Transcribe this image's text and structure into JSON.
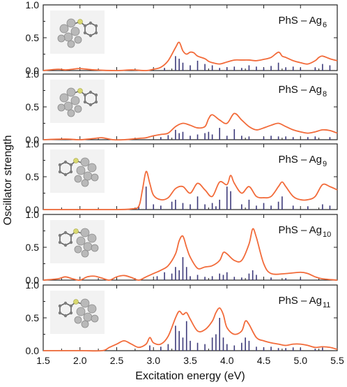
{
  "figure": {
    "ylabel": "Oscillator strength",
    "xlabel": "Excitation energy (eV)",
    "x_ticks": [
      "1.5",
      "2.0",
      "2.5",
      "3.0",
      "3.5",
      "4.0",
      "4.5",
      "5.0",
      "5.5"
    ],
    "y_ticks": [
      "0.0",
      "0.5",
      "1.0"
    ],
    "colors": {
      "spectrum": "#f26b3a",
      "sticks": "#3d3a7a",
      "frame": "#222222"
    }
  },
  "panels": [
    {
      "label_main": "PhS – Ag",
      "label_sub": "6"
    },
    {
      "label_main": "PhS – Ag",
      "label_sub": "8"
    },
    {
      "label_main": "PhS – Ag",
      "label_sub": "9"
    },
    {
      "label_main": "PhS – Ag",
      "label_sub": "10"
    },
    {
      "label_main": "PhS – Ag",
      "label_sub": "11"
    }
  ],
  "chart_data": [
    {
      "type": "line",
      "title": "PhS – Ag6",
      "xlabel": "Excitation energy (eV)",
      "ylabel": "Oscillator strength",
      "xlim": [
        1.5,
        5.5
      ],
      "ylim": [
        0,
        1.0
      ],
      "series": [
        {
          "x": [
            1.5,
            1.7,
            1.8,
            1.9,
            2.0,
            2.2,
            2.5,
            2.7,
            2.9,
            3.0,
            3.1,
            3.2,
            3.3,
            3.35,
            3.4,
            3.45,
            3.5,
            3.55,
            3.6,
            3.7,
            3.75,
            3.8,
            3.9,
            4.0,
            4.1,
            4.2,
            4.3,
            4.4,
            4.5,
            4.6,
            4.7,
            4.75,
            4.8,
            4.9,
            5.0,
            5.1,
            5.2,
            5.25,
            5.3,
            5.4,
            5.5
          ],
          "y": [
            0.0,
            0.02,
            0.01,
            0.02,
            0.03,
            0.01,
            0.0,
            0.01,
            0.0,
            0.02,
            0.05,
            0.15,
            0.35,
            0.43,
            0.3,
            0.25,
            0.28,
            0.27,
            0.22,
            0.18,
            0.14,
            0.12,
            0.1,
            0.13,
            0.16,
            0.16,
            0.16,
            0.15,
            0.17,
            0.2,
            0.28,
            0.22,
            0.2,
            0.15,
            0.12,
            0.1,
            0.15,
            0.2,
            0.22,
            0.18,
            0.15
          ]
        }
      ],
      "sticks": [
        [
          3.15,
          0.04
        ],
        [
          3.3,
          0.22
        ],
        [
          3.35,
          0.18
        ],
        [
          3.4,
          0.12
        ],
        [
          3.5,
          0.08
        ],
        [
          3.6,
          0.15
        ],
        [
          3.7,
          0.1
        ],
        [
          3.8,
          0.08
        ],
        [
          3.9,
          0.04
        ],
        [
          4.0,
          0.05
        ],
        [
          4.1,
          0.06
        ],
        [
          4.2,
          0.04
        ],
        [
          4.3,
          0.08
        ],
        [
          4.4,
          0.06
        ],
        [
          4.5,
          0.04
        ],
        [
          4.6,
          0.07
        ],
        [
          4.7,
          0.12
        ],
        [
          4.8,
          0.05
        ],
        [
          4.9,
          0.06
        ],
        [
          5.0,
          0.04
        ],
        [
          5.2,
          0.05
        ],
        [
          5.3,
          0.1
        ],
        [
          5.4,
          0.08
        ]
      ]
    },
    {
      "type": "line",
      "title": "PhS – Ag8",
      "xlabel": "Excitation energy (eV)",
      "ylabel": "Oscillator strength",
      "xlim": [
        1.5,
        5.5
      ],
      "ylim": [
        0,
        1.0
      ],
      "series": [
        {
          "x": [
            1.5,
            1.8,
            2.0,
            2.2,
            2.3,
            2.45,
            2.6,
            2.8,
            2.9,
            3.0,
            3.1,
            3.2,
            3.3,
            3.4,
            3.5,
            3.6,
            3.7,
            3.75,
            3.8,
            3.9,
            4.0,
            4.1,
            4.2,
            4.3,
            4.4,
            4.5,
            4.6,
            4.7,
            4.8,
            4.9,
            5.0,
            5.1,
            5.2,
            5.3,
            5.4,
            5.5
          ],
          "y": [
            0.0,
            0.01,
            0.0,
            0.02,
            0.03,
            0.0,
            0.0,
            0.02,
            0.03,
            0.06,
            0.08,
            0.1,
            0.2,
            0.25,
            0.22,
            0.18,
            0.2,
            0.32,
            0.38,
            0.3,
            0.25,
            0.4,
            0.3,
            0.2,
            0.15,
            0.18,
            0.22,
            0.25,
            0.2,
            0.15,
            0.12,
            0.1,
            0.12,
            0.15,
            0.14,
            0.1
          ]
        }
      ],
      "sticks": [
        [
          3.1,
          0.04
        ],
        [
          3.2,
          0.07
        ],
        [
          3.3,
          0.15
        ],
        [
          3.35,
          0.1
        ],
        [
          3.4,
          0.12
        ],
        [
          3.5,
          0.06
        ],
        [
          3.6,
          0.08
        ],
        [
          3.7,
          0.1
        ],
        [
          3.75,
          0.12
        ],
        [
          3.8,
          0.08
        ],
        [
          3.9,
          0.18
        ],
        [
          4.0,
          0.06
        ],
        [
          4.1,
          0.16
        ],
        [
          4.2,
          0.06
        ],
        [
          4.3,
          0.05
        ],
        [
          4.5,
          0.04
        ],
        [
          4.6,
          0.06
        ],
        [
          4.7,
          0.05
        ],
        [
          4.8,
          0.05
        ],
        [
          4.9,
          0.04
        ],
        [
          5.1,
          0.04
        ],
        [
          5.2,
          0.05
        ],
        [
          5.4,
          0.04
        ]
      ]
    },
    {
      "type": "line",
      "title": "PhS – Ag9",
      "xlabel": "Excitation energy (eV)",
      "ylabel": "Oscillator strength",
      "xlim": [
        1.5,
        5.5
      ],
      "ylim": [
        0,
        1.0
      ],
      "series": [
        {
          "x": [
            1.5,
            2.0,
            2.5,
            2.7,
            2.8,
            2.85,
            2.9,
            2.95,
            3.0,
            3.1,
            3.2,
            3.3,
            3.4,
            3.5,
            3.6,
            3.7,
            3.8,
            3.9,
            4.0,
            4.05,
            4.1,
            4.2,
            4.3,
            4.4,
            4.5,
            4.6,
            4.7,
            4.75,
            4.8,
            4.9,
            5.0,
            5.1,
            5.2,
            5.3,
            5.4,
            5.5
          ],
          "y": [
            0.0,
            0.0,
            0.0,
            0.01,
            0.05,
            0.3,
            0.58,
            0.4,
            0.22,
            0.15,
            0.18,
            0.32,
            0.35,
            0.25,
            0.4,
            0.3,
            0.2,
            0.42,
            0.38,
            0.52,
            0.4,
            0.25,
            0.35,
            0.2,
            0.18,
            0.2,
            0.35,
            0.42,
            0.35,
            0.2,
            0.15,
            0.15,
            0.2,
            0.38,
            0.35,
            0.3
          ]
        }
      ],
      "sticks": [
        [
          2.8,
          0.05
        ],
        [
          2.9,
          0.35
        ],
        [
          3.0,
          0.08
        ],
        [
          3.1,
          0.06
        ],
        [
          3.25,
          0.12
        ],
        [
          3.3,
          0.15
        ],
        [
          3.4,
          0.1
        ],
        [
          3.5,
          0.08
        ],
        [
          3.6,
          0.2
        ],
        [
          3.7,
          0.08
        ],
        [
          3.8,
          0.1
        ],
        [
          3.85,
          0.05
        ],
        [
          3.9,
          0.15
        ],
        [
          4.0,
          0.35
        ],
        [
          4.05,
          0.28
        ],
        [
          4.2,
          0.08
        ],
        [
          4.3,
          0.15
        ],
        [
          4.4,
          0.06
        ],
        [
          4.5,
          0.1
        ],
        [
          4.6,
          0.06
        ],
        [
          4.7,
          0.12
        ],
        [
          4.75,
          0.2
        ],
        [
          4.9,
          0.06
        ],
        [
          5.1,
          0.05
        ],
        [
          5.3,
          0.08
        ],
        [
          5.4,
          0.06
        ]
      ]
    },
    {
      "type": "line",
      "title": "PhS – Ag10",
      "xlabel": "Excitation energy (eV)",
      "ylabel": "Oscillator strength",
      "xlim": [
        1.5,
        5.5
      ],
      "ylim": [
        0,
        1.0
      ],
      "series": [
        {
          "x": [
            1.5,
            1.7,
            1.8,
            1.9,
            2.0,
            2.1,
            2.2,
            2.3,
            2.4,
            2.5,
            2.6,
            2.7,
            2.8,
            2.9,
            3.0,
            3.1,
            3.2,
            3.3,
            3.35,
            3.4,
            3.45,
            3.5,
            3.6,
            3.7,
            3.8,
            3.9,
            3.95,
            4.0,
            4.1,
            4.2,
            4.3,
            4.35,
            4.4,
            4.5,
            4.6,
            4.8,
            5.0,
            5.1,
            5.2,
            5.3,
            5.5
          ],
          "y": [
            0.0,
            0.02,
            0.05,
            0.02,
            0.0,
            0.05,
            0.06,
            0.03,
            0.0,
            0.05,
            0.07,
            0.04,
            0.0,
            0.05,
            0.1,
            0.15,
            0.22,
            0.4,
            0.6,
            0.67,
            0.5,
            0.35,
            0.18,
            0.2,
            0.22,
            0.3,
            0.42,
            0.4,
            0.3,
            0.3,
            0.55,
            0.78,
            0.65,
            0.25,
            0.1,
            0.1,
            0.12,
            0.1,
            0.05,
            0.02,
            0.0
          ]
        }
      ],
      "sticks": [
        [
          3.05,
          0.06
        ],
        [
          3.15,
          0.12
        ],
        [
          3.25,
          0.1
        ],
        [
          3.3,
          0.2
        ],
        [
          3.35,
          0.15
        ],
        [
          3.4,
          0.35
        ],
        [
          3.45,
          0.2
        ],
        [
          3.5,
          0.06
        ],
        [
          3.6,
          0.08
        ],
        [
          3.7,
          0.05
        ],
        [
          3.8,
          0.06
        ],
        [
          3.9,
          0.1
        ],
        [
          3.95,
          0.08
        ],
        [
          4.0,
          0.12
        ],
        [
          4.1,
          0.05
        ],
        [
          4.2,
          0.04
        ],
        [
          4.3,
          0.1
        ],
        [
          4.35,
          0.15
        ],
        [
          4.4,
          0.08
        ],
        [
          4.6,
          0.04
        ],
        [
          4.8,
          0.03
        ],
        [
          5.0,
          0.03
        ]
      ]
    },
    {
      "type": "line",
      "title": "PhS – Ag11",
      "xlabel": "Excitation energy (eV)",
      "ylabel": "Oscillator strength",
      "xlim": [
        1.5,
        5.5
      ],
      "ylim": [
        0,
        1.0
      ],
      "series": [
        {
          "x": [
            1.5,
            2.0,
            2.3,
            2.4,
            2.5,
            2.6,
            2.7,
            2.8,
            2.9,
            2.95,
            3.0,
            3.1,
            3.2,
            3.3,
            3.35,
            3.4,
            3.45,
            3.5,
            3.6,
            3.7,
            3.8,
            3.85,
            3.9,
            3.95,
            4.0,
            4.1,
            4.2,
            4.25,
            4.3,
            4.4,
            4.5,
            4.6,
            4.7,
            4.8,
            4.9,
            5.0,
            5.1,
            5.2,
            5.3,
            5.4,
            5.5
          ],
          "y": [
            0.0,
            0.0,
            0.0,
            0.05,
            0.1,
            0.15,
            0.1,
            0.05,
            0.1,
            0.2,
            0.12,
            0.1,
            0.22,
            0.5,
            0.6,
            0.55,
            0.58,
            0.48,
            0.3,
            0.32,
            0.45,
            0.58,
            0.65,
            0.55,
            0.35,
            0.25,
            0.3,
            0.45,
            0.4,
            0.2,
            0.15,
            0.12,
            0.1,
            0.08,
            0.1,
            0.1,
            0.08,
            0.05,
            0.06,
            0.05,
            0.02
          ]
        }
      ],
      "sticks": [
        [
          2.95,
          0.08
        ],
        [
          3.1,
          0.06
        ],
        [
          3.2,
          0.1
        ],
        [
          3.3,
          0.38
        ],
        [
          3.35,
          0.3
        ],
        [
          3.4,
          0.2
        ],
        [
          3.45,
          0.45
        ],
        [
          3.5,
          0.15
        ],
        [
          3.6,
          0.12
        ],
        [
          3.7,
          0.1
        ],
        [
          3.8,
          0.2
        ],
        [
          3.85,
          0.25
        ],
        [
          3.9,
          0.5
        ],
        [
          3.95,
          0.2
        ],
        [
          4.0,
          0.1
        ],
        [
          4.1,
          0.08
        ],
        [
          4.2,
          0.12
        ],
        [
          4.25,
          0.2
        ],
        [
          4.3,
          0.15
        ],
        [
          4.4,
          0.06
        ],
        [
          4.5,
          0.05
        ],
        [
          4.6,
          0.06
        ],
        [
          4.7,
          0.04
        ],
        [
          4.8,
          0.04
        ],
        [
          4.9,
          0.05
        ],
        [
          5.0,
          0.04
        ],
        [
          5.2,
          0.03
        ],
        [
          5.3,
          0.05
        ]
      ]
    }
  ]
}
